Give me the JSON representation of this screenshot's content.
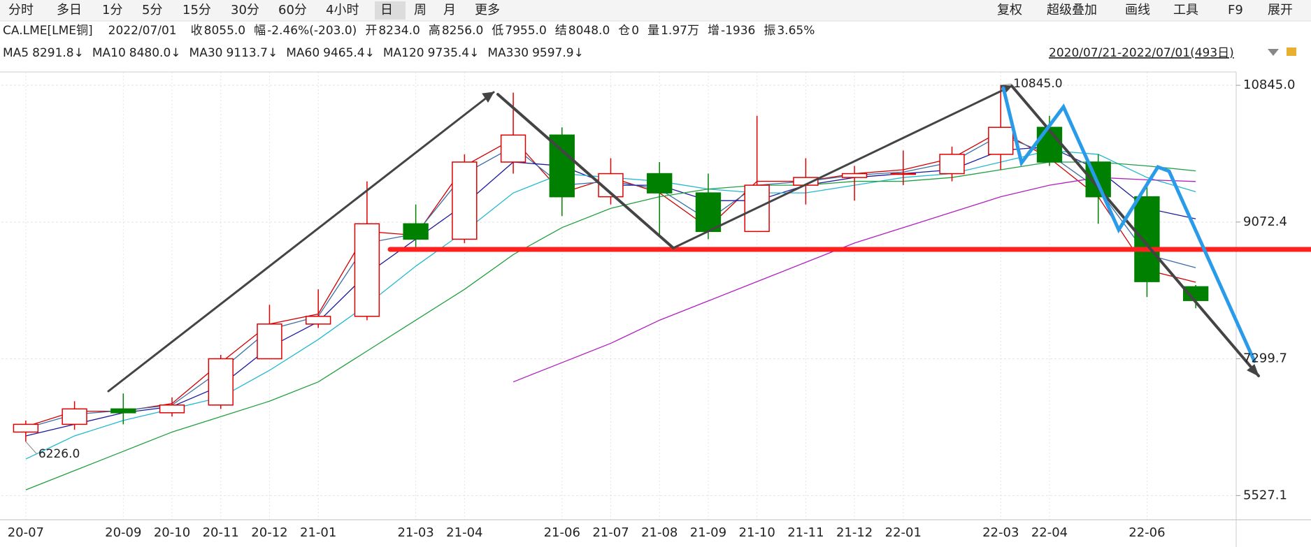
{
  "toolbar": {
    "tabs": [
      "分时",
      "多日",
      "1分",
      "5分",
      "15分",
      "30分",
      "60分",
      "4小时",
      "日",
      "周",
      "月",
      "更多"
    ],
    "active": 8,
    "right": [
      "复权",
      "超级叠加",
      "画线",
      "工具",
      "F9",
      "展开"
    ]
  },
  "info": {
    "symbol": "CA.LME[LME铜]",
    "date": "2022/07/01",
    "fields": [
      {
        "label": "收",
        "value": "8055.0",
        "color": "#008000"
      },
      {
        "label": "幅",
        "value": "-2.46%(-203.0)",
        "color": "#008000"
      },
      {
        "label": "开",
        "value": "8234.0",
        "color": "#008000"
      },
      {
        "label": "高",
        "value": "8256.0",
        "color": "#008000"
      },
      {
        "label": "低",
        "value": "7955.0",
        "color": "#008000"
      },
      {
        "label": "结",
        "value": "8048.0",
        "color": "#008000"
      },
      {
        "label": "仓",
        "value": "0",
        "color": "#222222"
      },
      {
        "label": "量",
        "value": "1.97万",
        "color": "#222222"
      },
      {
        "label": "增",
        "value": "-1936",
        "color": "#008000"
      },
      {
        "label": "振",
        "value": "3.65%",
        "color": "#222222"
      }
    ]
  },
  "range": "2020/07/21-2022/07/01(493日)",
  "chart_data": {
    "type": "candlestick",
    "categories": [
      "20-07",
      null,
      "20-09",
      "20-10",
      "20-11",
      "20-12",
      "21-01",
      null,
      "21-03",
      "21-04",
      null,
      "21-06",
      "21-07",
      "21-08",
      "21-09",
      "21-10",
      "21-11",
      "21-12",
      "22-01",
      null,
      "22-03",
      "22-04",
      null,
      "22-06",
      null
    ],
    "open": [
      6350,
      6450,
      6650,
      6600,
      6700,
      7300,
      7750,
      7850,
      9050,
      8850,
      9850,
      10200,
      9400,
      9700,
      9450,
      8950,
      9550,
      9650,
      9700,
      9700,
      9950,
      10300,
      9850,
      9400,
      8234
    ],
    "high": [
      6500,
      6750,
      6850,
      6800,
      7350,
      8000,
      8200,
      9600,
      9300,
      9950,
      10750,
      10300,
      9900,
      9850,
      9700,
      10450,
      9900,
      9800,
      10000,
      10050,
      10845,
      10450,
      9950,
      9600,
      8256
    ],
    "low": [
      6226,
      6380,
      6450,
      6550,
      6650,
      7300,
      7700,
      7800,
      8700,
      8800,
      9700,
      9150,
      9300,
      8900,
      8850,
      8950,
      9300,
      9350,
      9550,
      9600,
      9750,
      9800,
      9050,
      8100,
      7955
    ],
    "close": [
      6450,
      6650,
      6600,
      6700,
      7300,
      7750,
      7850,
      9050,
      8850,
      9850,
      10200,
      9400,
      9700,
      9450,
      8950,
      9550,
      9650,
      9700,
      9700,
      9950,
      10300,
      9850,
      9400,
      8300,
      8055
    ],
    "up_color": "#e00000",
    "down_color": "#008000",
    "series": [
      {
        "name": "MA5",
        "legend_value": "8291.8↓",
        "color": "#d00000",
        "values": [
          6420,
          6620,
          6620,
          6720,
          7250,
          7750,
          7880,
          8950,
          8900,
          9800,
          10150,
          9450,
          9650,
          9450,
          9000,
          9600,
          9600,
          9700,
          9750,
          9900,
          10250,
          9900,
          9400,
          8450,
          8291.8
        ]
      },
      {
        "name": "MA10",
        "legend_value": "8480.0↓",
        "color": "#3a6ea5",
        "values": [
          6400,
          6580,
          6630,
          6700,
          7150,
          7680,
          7850,
          8800,
          8920,
          9700,
          10050,
          9550,
          9600,
          9500,
          9100,
          9550,
          9600,
          9680,
          9720,
          9850,
          10200,
          9950,
          9500,
          8650,
          8480.0
        ]
      },
      {
        "name": "MA30",
        "legend_value": "9113.7↓",
        "color": "#1a1aa0",
        "values": [
          6300,
          6450,
          6600,
          6680,
          6950,
          7450,
          7780,
          8400,
          8850,
          9300,
          9850,
          9800,
          9550,
          9550,
          9350,
          9350,
          9550,
          9650,
          9700,
          9750,
          10000,
          10050,
          9750,
          9250,
          9113.7
        ]
      },
      {
        "name": "MA60",
        "legend_value": "9465.4↓",
        "color": "#20b8d0",
        "values": [
          6000,
          6300,
          6500,
          6650,
          6800,
          7150,
          7550,
          8000,
          8500,
          8950,
          9450,
          9700,
          9650,
          9600,
          9500,
          9450,
          9450,
          9550,
          9650,
          9700,
          9850,
          10000,
          9950,
          9650,
          9465.4
        ]
      },
      {
        "name": "MA120",
        "legend_value": "9735.4↓",
        "color": "#20a040",
        "values": [
          5600,
          5850,
          6100,
          6350,
          6550,
          6750,
          7000,
          7400,
          7800,
          8200,
          8650,
          9000,
          9250,
          9400,
          9500,
          9550,
          9550,
          9600,
          9600,
          9650,
          9750,
          9850,
          9850,
          9800,
          9735.4
        ]
      },
      {
        "name": "MA330",
        "legend_value": "9597.9↓",
        "color": "#b020c0",
        "values": [
          null,
          null,
          null,
          null,
          null,
          null,
          null,
          null,
          null,
          null,
          7000,
          7250,
          7500,
          7800,
          8050,
          8300,
          8550,
          8800,
          9000,
          9200,
          9400,
          9550,
          9650,
          9620,
          9597.9
        ]
      }
    ],
    "annotations": [
      {
        "text": "6226.0",
        "color": "#008000"
      },
      {
        "text": "10845.0",
        "color": "#c00000"
      }
    ],
    "ylim": [
      5213,
      11018
    ],
    "yticks": [
      {
        "value": 10845,
        "label": "10845.0"
      },
      {
        "value": 9072.4,
        "label": "9072.4"
      },
      {
        "value": 7299.7,
        "label": "7299.7"
      },
      {
        "value": 5527.1,
        "label": "5527.1"
      }
    ],
    "grid": true
  }
}
